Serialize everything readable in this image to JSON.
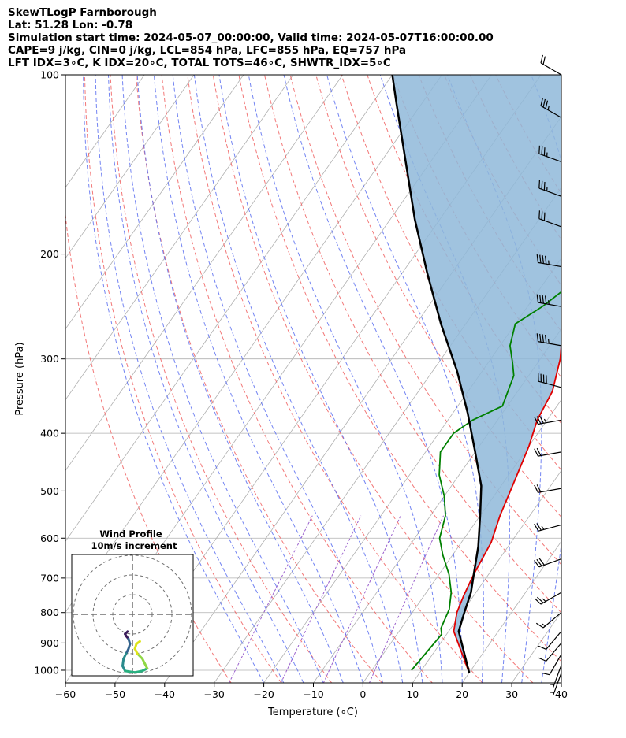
{
  "header": {
    "line1": "SkewTLogP Farnborough",
    "line2": "Lat: 51.28   Lon: -0.78",
    "line3": "Simulation start time: 2024-05-07_00:00:00, Valid time: 2024-05-07T16:00:00.00",
    "line4": "CAPE=9 j/kg, CIN=0 j/kg, LCL=854 hPa, LFC=855 hPa, EQ=757 hPa",
    "line5": "LFT IDX=3∘C, K IDX=20∘C, TOTAL TOTS=46∘C, SHWTR_IDX=5∘C"
  },
  "chart_data": {
    "type": "skew-t log-p",
    "xlabel": "Temperature (∘C)",
    "ylabel": "Pressure (hPa)",
    "xlim": [
      -60,
      40
    ],
    "ylim": [
      1050,
      100
    ],
    "x_ticks": [
      "−60",
      "−50",
      "−40",
      "−30",
      "−20",
      "−10",
      "0",
      "10",
      "20",
      "30",
      "40"
    ],
    "x_tick_values": [
      -60,
      -50,
      -40,
      -30,
      -20,
      -10,
      0,
      10,
      20,
      30,
      40
    ],
    "y_ticks": [
      "1000",
      "900",
      "800",
      "700",
      "600",
      "500",
      "400",
      "300",
      "200",
      "100"
    ],
    "y_tick_values": [
      1000,
      900,
      800,
      700,
      600,
      500,
      400,
      300,
      200,
      100
    ],
    "grid": true,
    "y_scale": "log",
    "colors": {
      "temperature": "#e00000",
      "dewpoint": "#008000",
      "parcel": "#000000",
      "cape_fill": "#8fb9d9",
      "dry_adiabat": "#f06060",
      "moist_adiabat": "#5a6ef0",
      "mixing_ratio": "#9050c8",
      "isotherm": "#b0b0b0"
    },
    "series": [
      {
        "kind": "temperature",
        "points": [
          [
            20,
            1010
          ],
          [
            11,
            860
          ],
          [
            9,
            800
          ],
          [
            8,
            750
          ],
          [
            7,
            690
          ],
          [
            6,
            610
          ],
          [
            4,
            550
          ],
          [
            2,
            480
          ],
          [
            0,
            420
          ],
          [
            -2,
            380
          ],
          [
            -3,
            340
          ],
          [
            -6,
            300
          ],
          [
            -10,
            265
          ],
          [
            -13,
            235
          ],
          [
            -13,
            215
          ],
          [
            -10,
            195
          ],
          [
            -6,
            182
          ],
          [
            -3,
            170
          ],
          [
            -1,
            152
          ],
          [
            1,
            138
          ],
          [
            2,
            127
          ],
          [
            5,
            115
          ],
          [
            7,
            106
          ],
          [
            9,
            100
          ]
        ]
      },
      {
        "kind": "dewpoint",
        "points": [
          [
            8,
            1000
          ],
          [
            9,
            870
          ],
          [
            8,
            850
          ],
          [
            7,
            790
          ],
          [
            5,
            740
          ],
          [
            2,
            690
          ],
          [
            -2,
            640
          ],
          [
            -5,
            600
          ],
          [
            -7,
            550
          ],
          [
            -10,
            510
          ],
          [
            -14,
            470
          ],
          [
            -17,
            430
          ],
          [
            -17,
            400
          ],
          [
            -15,
            380
          ],
          [
            -11,
            360
          ],
          [
            -13,
            320
          ],
          [
            -15,
            305
          ],
          [
            -18,
            285
          ],
          [
            -20,
            262
          ],
          [
            -17,
            245
          ],
          [
            -13,
            215
          ],
          [
            -12,
            200
          ],
          [
            -11,
            180
          ],
          [
            -11,
            170
          ],
          [
            -12,
            162
          ],
          [
            -13,
            152
          ],
          [
            -10,
            135
          ],
          [
            -6,
            120
          ],
          [
            -3,
            108
          ],
          [
            -1,
            100
          ]
        ]
      },
      {
        "kind": "parcel",
        "points": [
          [
            20,
            1010
          ],
          [
            12,
            860
          ],
          [
            10.5,
            800
          ],
          [
            9,
            740
          ],
          [
            7,
            690
          ],
          [
            4,
            620
          ],
          [
            0,
            550
          ],
          [
            -4,
            490
          ],
          [
            -10,
            430
          ],
          [
            -17,
            370
          ],
          [
            -25,
            315
          ],
          [
            -35,
            262
          ],
          [
            -45,
            215
          ],
          [
            -55,
            175
          ],
          [
            -65,
            140
          ],
          [
            -75,
            112
          ],
          [
            -80,
            100
          ]
        ]
      }
    ],
    "wind_barbs": [
      {
        "p": 100,
        "dir": 300,
        "speed_kt": 20
      },
      {
        "p": 118,
        "dir": 300,
        "speed_kt": 35
      },
      {
        "p": 140,
        "dir": 290,
        "speed_kt": 35
      },
      {
        "p": 160,
        "dir": 290,
        "speed_kt": 35
      },
      {
        "p": 180,
        "dir": 290,
        "speed_kt": 30
      },
      {
        "p": 210,
        "dir": 280,
        "speed_kt": 45
      },
      {
        "p": 245,
        "dir": 280,
        "speed_kt": 45
      },
      {
        "p": 285,
        "dir": 280,
        "speed_kt": 45
      },
      {
        "p": 335,
        "dir": 285,
        "speed_kt": 40
      },
      {
        "p": 380,
        "dir": 260,
        "speed_kt": 35
      },
      {
        "p": 430,
        "dir": 260,
        "speed_kt": 20
      },
      {
        "p": 495,
        "dir": 260,
        "speed_kt": 20
      },
      {
        "p": 570,
        "dir": 255,
        "speed_kt": 25
      },
      {
        "p": 650,
        "dir": 250,
        "speed_kt": 30
      },
      {
        "p": 740,
        "dir": 240,
        "speed_kt": 25
      },
      {
        "p": 800,
        "dir": 230,
        "speed_kt": 15
      },
      {
        "p": 860,
        "dir": 220,
        "speed_kt": 10
      },
      {
        "p": 900,
        "dir": 220,
        "speed_kt": 10
      },
      {
        "p": 940,
        "dir": 210,
        "speed_kt": 10
      },
      {
        "p": 980,
        "dir": 200,
        "speed_kt": 5
      },
      {
        "p": 1010,
        "dir": 200,
        "speed_kt": 5
      }
    ],
    "hodograph": {
      "title_line1": "Wind Profile",
      "title_line2": "10m/s increment",
      "ring_count": 3,
      "points": [
        [
          -1,
          -3.5
        ],
        [
          -1.5,
          -4
        ],
        [
          -1.2,
          -4.5
        ],
        [
          -0.8,
          -5
        ],
        [
          -0.5,
          -6
        ],
        [
          -0.8,
          -7
        ],
        [
          -1.3,
          -8
        ],
        [
          -1.8,
          -9
        ],
        [
          -2.0,
          -10.5
        ],
        [
          -1.5,
          -11.5
        ],
        [
          0.5,
          -11.8
        ],
        [
          2.0,
          -11.5
        ],
        [
          3.0,
          -11.0
        ],
        [
          2.5,
          -10.0
        ],
        [
          2.0,
          -9.0
        ],
        [
          1.0,
          -8.0
        ],
        [
          0.5,
          -7.0
        ],
        [
          0.8,
          -6.0
        ],
        [
          1.5,
          -5.5
        ]
      ],
      "colors": [
        "#3b1c5a",
        "#33638d",
        "#2a8b8c",
        "#29af7f",
        "#8fd744",
        "#dde318"
      ]
    }
  }
}
